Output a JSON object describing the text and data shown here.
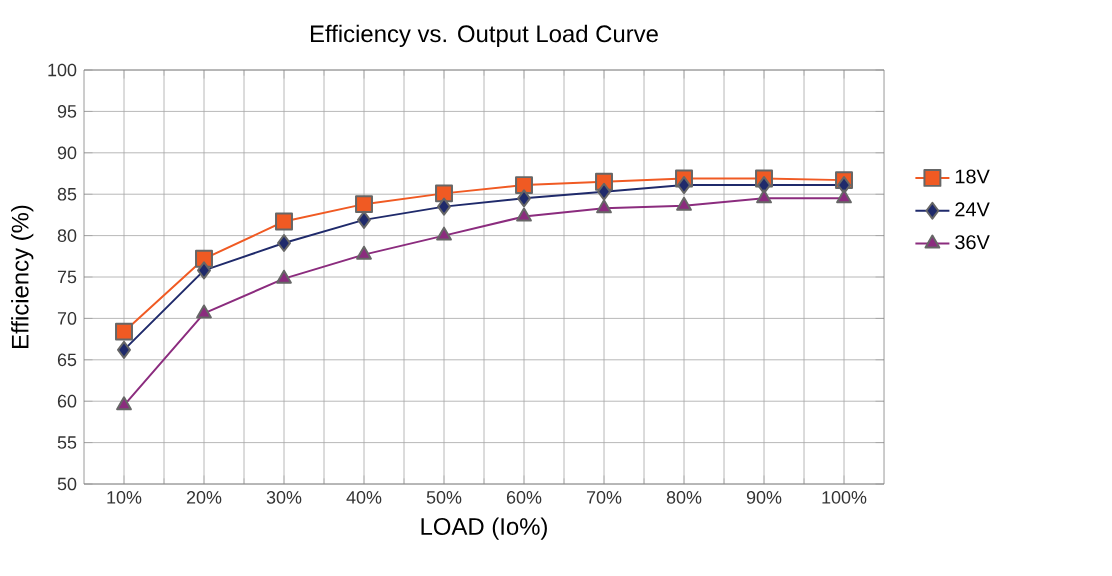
{
  "chart_data": {
    "type": "line",
    "title": "Efficiency vs. Output Load Curve",
    "xlabel": "LOAD (Io%)",
    "ylabel": "Efficiency (%)",
    "categories": [
      "10%",
      "20%",
      "30%",
      "40%",
      "50%",
      "60%",
      "70%",
      "80%",
      "90%",
      "100%"
    ],
    "series": [
      {
        "name": "18V",
        "color": "#f05a23",
        "marker": "square",
        "values": [
          68.4,
          77.2,
          81.7,
          83.8,
          85.1,
          86.1,
          86.5,
          86.9,
          86.9,
          86.7
        ]
      },
      {
        "name": "24V",
        "color": "#1f2a6b",
        "marker": "diamond",
        "values": [
          66.2,
          75.8,
          79.1,
          81.9,
          83.5,
          84.5,
          85.3,
          86.1,
          86.1,
          86.1
        ]
      },
      {
        "name": "36V",
        "color": "#8b2c7e",
        "marker": "triangle",
        "values": [
          59.5,
          70.6,
          74.8,
          77.7,
          80.0,
          82.3,
          83.3,
          83.6,
          84.5,
          84.5
        ]
      }
    ],
    "ylim": [
      50,
      100
    ],
    "yticks": [
      50,
      55,
      60,
      65,
      70,
      75,
      80,
      85,
      90,
      95,
      100
    ],
    "grid": true,
    "legend": "right",
    "line_style": "solid"
  }
}
